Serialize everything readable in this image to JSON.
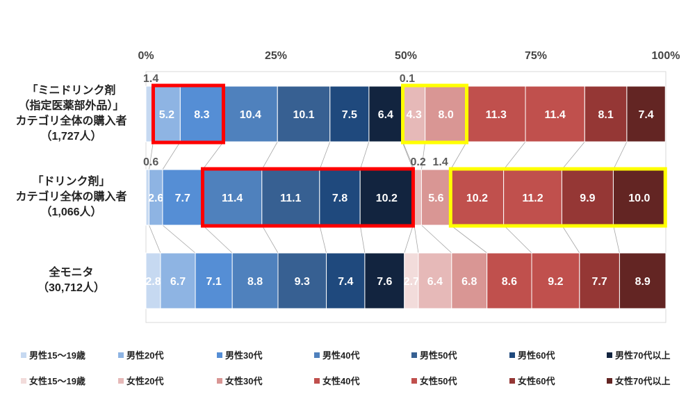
{
  "chart_data": {
    "type": "bar",
    "orientation": "horizontal-stacked-100",
    "xlim": [
      0,
      100
    ],
    "x_ticks": [
      "0%",
      "25%",
      "50%",
      "75%",
      "100%"
    ],
    "categories": [
      [
        "「ミニドリンク剤",
        "（指定医薬部外品）」",
        "カテゴリ全体の購入者",
        "（1,727人）"
      ],
      [
        "「ドリンク剤」",
        "カテゴリ全体の購入者",
        "（1,066人）"
      ],
      [
        "全モニタ",
        "（30,712人）"
      ]
    ],
    "series": [
      {
        "name": "男性15～19歳",
        "color": "#c6d9f1",
        "values": [
          1.4,
          0.6,
          2.8
        ]
      },
      {
        "name": "男性20代",
        "color": "#8eb4e3",
        "values": [
          5.2,
          2.6,
          6.7
        ]
      },
      {
        "name": "男性30代",
        "color": "#558ed5",
        "values": [
          8.3,
          7.7,
          7.1
        ]
      },
      {
        "name": "男性40代",
        "color": "#4f81bd",
        "values": [
          10.4,
          11.4,
          8.8
        ]
      },
      {
        "name": "男性50代",
        "color": "#376092",
        "values": [
          10.1,
          11.1,
          9.3
        ]
      },
      {
        "name": "男性60代",
        "color": "#1f497d",
        "values": [
          7.5,
          7.8,
          7.4
        ]
      },
      {
        "name": "男性70代以上",
        "color": "#12243f",
        "values": [
          6.4,
          10.2,
          7.6
        ]
      },
      {
        "name": "女性15～19歳",
        "color": "#f2dcdb",
        "values": [
          0.1,
          0.2,
          2.7
        ]
      },
      {
        "name": "女性20代",
        "color": "#e6b9b8",
        "values": [
          4.3,
          1.4,
          6.4
        ]
      },
      {
        "name": "女性30代",
        "color": "#d99694",
        "values": [
          8.0,
          5.6,
          6.8
        ]
      },
      {
        "name": "女性40代",
        "color": "#c0504d",
        "values": [
          11.3,
          10.2,
          8.6
        ]
      },
      {
        "name": "女性50代",
        "color": "#c0504d",
        "values": [
          11.4,
          11.2,
          9.2
        ]
      },
      {
        "name": "女性60代",
        "color": "#953735",
        "values": [
          8.1,
          9.9,
          7.7
        ]
      },
      {
        "name": "女性70代以上",
        "color": "#632523",
        "values": [
          7.4,
          10.0,
          8.9
        ]
      }
    ],
    "highlights": [
      {
        "row": 0,
        "from_series": 1,
        "to_series": 2,
        "color": "#ff0000"
      },
      {
        "row": 0,
        "from_series": 8,
        "to_series": 9,
        "color": "#ffff00"
      },
      {
        "row": 1,
        "from_series": 3,
        "to_series": 6,
        "color": "#ff0000"
      },
      {
        "row": 1,
        "from_series": 10,
        "to_series": 13,
        "color": "#ffff00"
      }
    ],
    "legend": "bottom",
    "label_threshold": 2.0
  }
}
